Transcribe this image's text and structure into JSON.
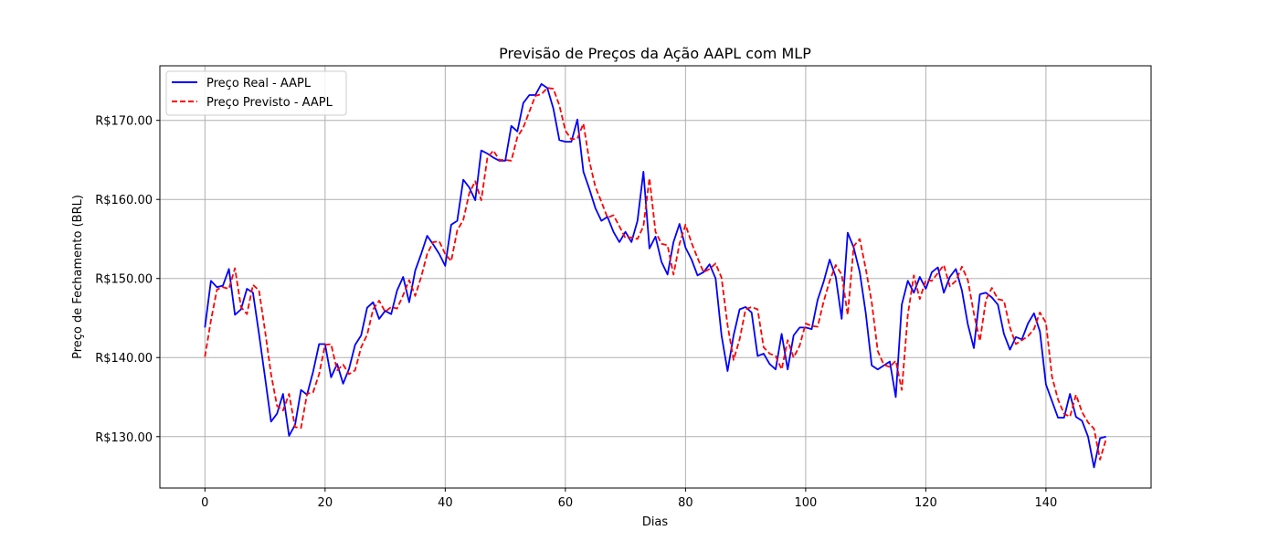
{
  "chart_data": {
    "type": "line",
    "title": "Previsão de Preços da Ação AAPL com MLP",
    "xlabel": "Dias",
    "ylabel": "Preço de Fechamento (BRL)",
    "xlim": [
      -7.5,
      157.5
    ],
    "ylim": [
      123.5,
      176.9
    ],
    "xticks": [
      0,
      20,
      40,
      60,
      80,
      100,
      120,
      140
    ],
    "xtick_labels": [
      "0",
      "20",
      "40",
      "60",
      "80",
      "100",
      "120",
      "140"
    ],
    "yticks": [
      130,
      140,
      150,
      160,
      170
    ],
    "ytick_labels": [
      "R$130.00",
      "R$140.00",
      "R$150.00",
      "R$160.00",
      "R$170.00"
    ],
    "grid": true,
    "legend_position": "top-left",
    "series": [
      {
        "name": "Preço Real - AAPL",
        "color": "#0000ff",
        "style": "solid",
        "x_start": 0,
        "values": [
          143.8,
          149.7,
          148.9,
          149.1,
          151.2,
          145.4,
          146.1,
          148.7,
          148.2,
          143.0,
          137.5,
          131.9,
          132.9,
          135.4,
          130.1,
          131.5,
          135.9,
          135.3,
          138.2,
          141.7,
          141.7,
          137.5,
          139.2,
          136.7,
          138.6,
          141.6,
          142.8,
          146.3,
          147.0,
          144.9,
          145.9,
          145.5,
          148.5,
          150.2,
          147.0,
          151.0,
          153.1,
          155.4,
          154.3,
          153.1,
          151.6,
          156.8,
          157.3,
          162.5,
          161.5,
          159.9,
          166.2,
          165.8,
          165.3,
          164.9,
          164.9,
          169.3,
          168.6,
          172.2,
          173.2,
          173.2,
          174.6,
          174.1,
          171.5,
          167.5,
          167.3,
          167.3,
          170.1,
          163.5,
          161.3,
          158.9,
          157.3,
          157.8,
          155.9,
          154.6,
          155.9,
          154.6,
          157.3,
          163.5,
          153.8,
          155.3,
          152.1,
          150.5,
          154.6,
          156.9,
          153.9,
          152.4,
          150.4,
          150.8,
          151.8,
          150.0,
          142.8,
          138.3,
          142.8,
          146.1,
          146.4,
          145.7,
          140.2,
          140.5,
          139.2,
          138.5,
          143.0,
          138.5,
          142.8,
          143.8,
          143.8,
          143.6,
          147.3,
          149.6,
          152.4,
          150.2,
          144.9,
          155.8,
          153.9,
          150.8,
          145.6,
          139.0,
          138.5,
          139.0,
          139.5,
          135.0,
          146.7,
          149.7,
          148.2,
          150.2,
          148.7,
          150.8,
          151.4,
          148.2,
          150.2,
          151.2,
          148.5,
          144.2,
          141.2,
          148.0,
          148.2,
          147.6,
          146.7,
          143.0,
          141.0,
          142.6,
          142.3,
          144.3,
          145.6,
          143.3,
          136.6,
          134.5,
          132.4,
          132.4,
          135.4,
          132.5,
          132.0,
          130.0,
          126.1,
          129.8,
          130.0
        ]
      },
      {
        "name": "Preço Previsto - AAPL",
        "color": "#ff0000",
        "style": "dashed",
        "x_start": 0,
        "values": [
          140.1,
          144.7,
          148.6,
          148.9,
          148.7,
          151.3,
          146.4,
          145.5,
          149.2,
          148.5,
          143.4,
          137.9,
          133.9,
          133.3,
          135.4,
          131.2,
          131.1,
          135.4,
          135.6,
          137.9,
          141.6,
          141.7,
          138.4,
          139.1,
          137.9,
          138.4,
          141.3,
          142.9,
          146.1,
          147.2,
          145.8,
          146.4,
          146.2,
          147.9,
          149.8,
          147.8,
          150.2,
          153.1,
          154.6,
          154.7,
          153.1,
          152.2,
          156.1,
          157.4,
          160.8,
          162.3,
          159.9,
          165.2,
          166.2,
          165.0,
          165.0,
          164.9,
          167.9,
          169.1,
          171.1,
          173.1,
          173.3,
          174.1,
          174.0,
          171.9,
          168.7,
          167.6,
          167.7,
          169.6,
          164.8,
          161.6,
          159.7,
          157.7,
          158.0,
          156.6,
          155.1,
          155.2,
          155.0,
          156.6,
          162.7,
          155.9,
          154.4,
          154.2,
          150.5,
          154.4,
          156.8,
          154.5,
          152.6,
          150.8,
          151.2,
          151.9,
          150.1,
          144.1,
          139.7,
          142.3,
          146.1,
          146.4,
          146.1,
          141.3,
          140.5,
          140.2,
          138.5,
          142.2,
          140.0,
          141.5,
          144.3,
          144.0,
          143.9,
          147.1,
          149.7,
          151.7,
          150.5,
          145.4,
          154.1,
          155.0,
          151.2,
          147.0,
          140.8,
          139.1,
          138.8,
          139.6,
          135.9,
          145.4,
          150.4,
          147.4,
          149.8,
          149.7,
          150.7,
          151.7,
          149.0,
          149.7,
          151.5,
          149.8,
          145.6,
          142.1,
          147.3,
          148.8,
          147.4,
          147.2,
          143.8,
          141.7,
          142.2,
          142.7,
          143.6,
          145.7,
          144.4,
          137.6,
          134.7,
          132.9,
          132.5,
          135.3,
          133.1,
          131.8,
          131.0,
          127.1,
          129.7
        ]
      }
    ]
  }
}
